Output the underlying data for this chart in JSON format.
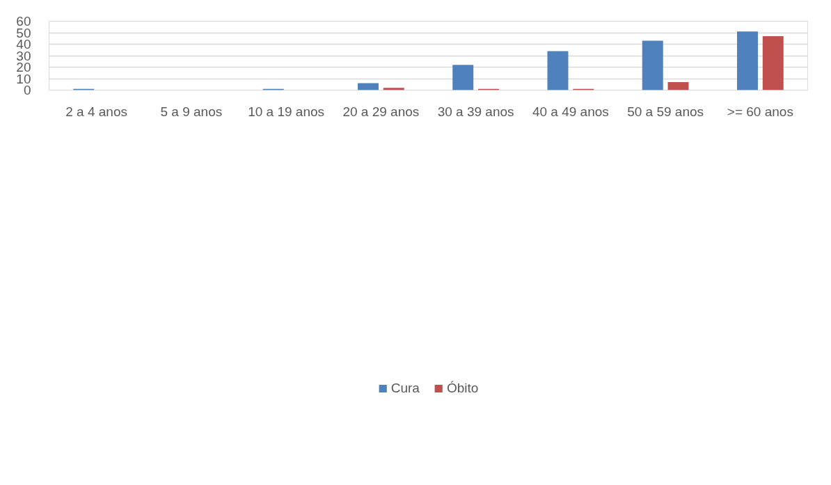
{
  "chart_data": {
    "type": "bar",
    "categories": [
      "2 a 4 anos",
      "5 a 9 anos",
      "10 a 19 anos",
      "20 a 29 anos",
      "30 a 39 anos",
      "40 a 49 anos",
      "50 a 59 anos",
      ">= 60 anos"
    ],
    "series": [
      {
        "name": "Cura",
        "color": "#4f81bd",
        "values": [
          1,
          0,
          1,
          6,
          22,
          34,
          43,
          51
        ]
      },
      {
        "name": "Óbito",
        "color": "#c0504d",
        "values": [
          0,
          0,
          0,
          2,
          1,
          1,
          7,
          47
        ]
      }
    ],
    "ylim": [
      0,
      60
    ],
    "yticks": [
      0,
      10,
      20,
      30,
      40,
      50,
      60
    ],
    "grid": "y",
    "legend": "bottom"
  }
}
